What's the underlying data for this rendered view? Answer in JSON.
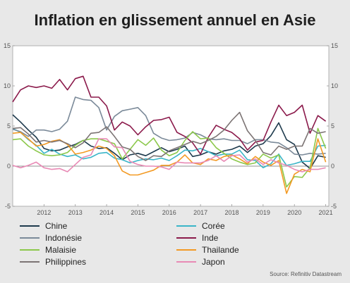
{
  "chart_data": {
    "type": "line",
    "title": "Inflation en glissement annuel en Asie",
    "source": "Source: Refinitiv Datastream",
    "ylim": [
      -5,
      15
    ],
    "yticks": [
      "-5",
      "0",
      "5",
      "10",
      "15"
    ],
    "xlim": [
      2011.5,
      2021.6
    ],
    "xticks": [
      "2012",
      "2013",
      "2014",
      "2015",
      "2016",
      "2017",
      "2018",
      "2019",
      "2020",
      "2021"
    ],
    "grid": false,
    "legend_position": "bottom",
    "series": [
      {
        "name": "Chine",
        "color": "#1e3a4d",
        "x": [
          2011.5,
          2011.75,
          2012,
          2012.25,
          2012.5,
          2012.75,
          2013,
          2013.25,
          2013.5,
          2013.75,
          2014,
          2014.25,
          2014.5,
          2014.75,
          2015,
          2015.25,
          2015.5,
          2015.75,
          2016,
          2016.25,
          2016.5,
          2016.75,
          2017,
          2017.25,
          2017.5,
          2017.75,
          2018,
          2018.25,
          2018.5,
          2018.75,
          2019,
          2019.25,
          2019.5,
          2019.75,
          2020,
          2020.25,
          2020.5,
          2020.75,
          2021,
          2021.25,
          2021.5
        ],
        "y": [
          6.4,
          5.5,
          4.5,
          3.6,
          2.2,
          1.9,
          2.0,
          2.4,
          2.7,
          3.2,
          2.5,
          2.2,
          2.3,
          1.6,
          0.8,
          1.4,
          1.6,
          1.3,
          1.8,
          2.3,
          1.8,
          2.1,
          2.5,
          1.2,
          1.4,
          1.8,
          1.5,
          1.9,
          2.1,
          2.5,
          1.7,
          2.5,
          2.8,
          3.8,
          5.4,
          3.3,
          2.7,
          0.5,
          -0.3,
          1.3,
          1.1
        ]
      },
      {
        "name": "Corée",
        "color": "#3ab5c8",
        "x": [
          2011.5,
          2011.75,
          2012,
          2012.25,
          2012.5,
          2012.75,
          2013,
          2013.25,
          2013.5,
          2013.75,
          2014,
          2014.25,
          2014.5,
          2014.75,
          2015,
          2015.25,
          2015.5,
          2015.75,
          2016,
          2016.25,
          2016.5,
          2016.75,
          2017,
          2017.25,
          2017.5,
          2017.75,
          2018,
          2018.25,
          2018.5,
          2018.75,
          2019,
          2019.25,
          2019.5,
          2019.75,
          2020,
          2020.25,
          2020.5,
          2020.75,
          2021,
          2021.25,
          2021.5
        ],
        "y": [
          4.7,
          4.2,
          3.3,
          2.6,
          1.6,
          2.1,
          1.5,
          1.2,
          1.4,
          0.9,
          1.1,
          1.6,
          1.7,
          1.0,
          0.8,
          0.4,
          0.7,
          0.9,
          0.8,
          1.0,
          0.7,
          1.3,
          2.0,
          1.9,
          2.2,
          1.8,
          1.3,
          1.5,
          1.5,
          2.0,
          0.8,
          0.7,
          -0.2,
          0.3,
          1.5,
          0.1,
          0.3,
          0.6,
          0.6,
          2.5,
          2.6
        ]
      },
      {
        "name": "Indonésie",
        "color": "#7b8a99",
        "x": [
          2011.5,
          2011.75,
          2012,
          2012.25,
          2012.5,
          2012.75,
          2013,
          2013.25,
          2013.5,
          2013.75,
          2014,
          2014.25,
          2014.5,
          2014.75,
          2015,
          2015.25,
          2015.5,
          2015.75,
          2016,
          2016.25,
          2016.5,
          2016.75,
          2017,
          2017.25,
          2017.5,
          2017.75,
          2018,
          2018.25,
          2018.5,
          2018.75,
          2019,
          2019.25,
          2019.5,
          2019.75,
          2020,
          2020.25,
          2020.5,
          2020.75,
          2021,
          2021.25,
          2021.5
        ],
        "y": [
          4.6,
          4.3,
          3.7,
          4.5,
          4.5,
          4.3,
          4.6,
          5.6,
          8.6,
          8.3,
          8.2,
          7.3,
          4.5,
          6.2,
          6.9,
          7.1,
          7.3,
          6.3,
          4.1,
          3.5,
          3.2,
          3.3,
          3.5,
          4.2,
          3.9,
          3.4,
          3.3,
          3.4,
          3.2,
          3.2,
          2.8,
          3.3,
          3.3,
          3.0,
          2.9,
          2.3,
          1.5,
          1.4,
          1.6,
          1.5,
          1.6
        ]
      },
      {
        "name": "Inde",
        "color": "#8b1a4b",
        "x": [
          2011.5,
          2011.75,
          2012,
          2012.25,
          2012.5,
          2012.75,
          2013,
          2013.25,
          2013.5,
          2013.75,
          2014,
          2014.25,
          2014.5,
          2014.75,
          2015,
          2015.25,
          2015.5,
          2015.75,
          2016,
          2016.25,
          2016.5,
          2016.75,
          2017,
          2017.25,
          2017.5,
          2017.75,
          2018,
          2018.25,
          2018.5,
          2018.75,
          2019,
          2019.25,
          2019.5,
          2019.75,
          2020,
          2020.25,
          2020.5,
          2020.75,
          2021,
          2021.25,
          2021.5
        ],
        "y": [
          8.0,
          9.5,
          10.0,
          9.8,
          10.0,
          9.7,
          10.8,
          9.5,
          10.9,
          11.2,
          8.6,
          8.6,
          7.5,
          4.5,
          5.5,
          5.0,
          3.9,
          4.9,
          5.7,
          5.8,
          6.1,
          4.2,
          3.7,
          2.9,
          1.5,
          3.6,
          5.1,
          4.6,
          4.2,
          3.4,
          2.0,
          3.0,
          3.2,
          5.5,
          7.6,
          6.3,
          6.7,
          7.6,
          4.1,
          6.3,
          5.6
        ]
      },
      {
        "name": "Malaisie",
        "color": "#8cc84b",
        "x": [
          2011.5,
          2011.75,
          2012,
          2012.25,
          2012.5,
          2012.75,
          2013,
          2013.25,
          2013.5,
          2013.75,
          2014,
          2014.25,
          2014.5,
          2014.75,
          2015,
          2015.25,
          2015.5,
          2015.75,
          2016,
          2016.25,
          2016.5,
          2016.75,
          2017,
          2017.25,
          2017.5,
          2017.75,
          2018,
          2018.25,
          2018.5,
          2018.75,
          2019,
          2019.25,
          2019.5,
          2019.75,
          2020,
          2020.25,
          2020.5,
          2020.75,
          2021,
          2021.25,
          2021.5
        ],
        "y": [
          3.3,
          3.4,
          2.5,
          1.9,
          1.4,
          1.3,
          1.4,
          1.7,
          2.6,
          3.2,
          3.4,
          3.4,
          3.1,
          2.8,
          0.9,
          2.1,
          3.3,
          2.6,
          3.5,
          2.0,
          1.3,
          1.7,
          3.2,
          4.3,
          3.4,
          3.5,
          2.3,
          1.6,
          0.9,
          0.5,
          0.2,
          0.4,
          1.5,
          1.0,
          1.4,
          -2.6,
          -1.3,
          -1.4,
          -0.2,
          4.7,
          2.2
        ]
      },
      {
        "name": "Thailande",
        "color": "#f39a24",
        "x": [
          2011.5,
          2011.75,
          2012,
          2012.25,
          2012.5,
          2012.75,
          2013,
          2013.25,
          2013.5,
          2013.75,
          2014,
          2014.25,
          2014.5,
          2014.75,
          2015,
          2015.25,
          2015.5,
          2015.75,
          2016,
          2016.25,
          2016.5,
          2016.75,
          2017,
          2017.25,
          2017.5,
          2017.75,
          2018,
          2018.25,
          2018.5,
          2018.75,
          2019,
          2019.25,
          2019.5,
          2019.75,
          2020,
          2020.25,
          2020.5,
          2020.75,
          2021,
          2021.25,
          2021.5
        ],
        "y": [
          4.1,
          4.2,
          3.4,
          2.5,
          2.7,
          3.1,
          3.3,
          2.7,
          1.5,
          1.7,
          2.0,
          2.5,
          2.2,
          1.3,
          -0.6,
          -1.1,
          -1.1,
          -0.8,
          -0.5,
          0.1,
          0.1,
          0.5,
          1.4,
          0.4,
          0.2,
          0.9,
          0.7,
          1.2,
          1.4,
          0.9,
          0.3,
          1.2,
          0.5,
          0.1,
          0.7,
          -3.4,
          -1.0,
          -0.4,
          -0.7,
          3.4,
          0.5
        ]
      },
      {
        "name": "Philippines",
        "color": "#7c7474",
        "x": [
          2011.5,
          2011.75,
          2012,
          2012.25,
          2012.5,
          2012.75,
          2013,
          2013.25,
          2013.5,
          2013.75,
          2014,
          2014.25,
          2014.5,
          2014.75,
          2015,
          2015.25,
          2015.5,
          2015.75,
          2016,
          2016.25,
          2016.5,
          2016.75,
          2017,
          2017.25,
          2017.5,
          2017.75,
          2018,
          2018.25,
          2018.5,
          2018.75,
          2019,
          2019.25,
          2019.5,
          2019.75,
          2020,
          2020.25,
          2020.5,
          2020.75,
          2021,
          2021.25,
          2021.5
        ],
        "y": [
          4.7,
          4.8,
          4.0,
          3.0,
          3.2,
          3.0,
          3.2,
          2.8,
          2.3,
          2.9,
          4.1,
          4.2,
          4.9,
          3.7,
          2.4,
          2.1,
          1.2,
          0.7,
          1.3,
          1.2,
          1.9,
          2.3,
          2.7,
          3.1,
          2.8,
          3.2,
          3.7,
          4.5,
          5.7,
          6.7,
          4.4,
          3.2,
          1.7,
          1.4,
          2.5,
          2.1,
          2.5,
          2.5,
          4.7,
          4.1,
          4.3
        ]
      },
      {
        "name": "Japon",
        "color": "#e88ab5",
        "x": [
          2011.5,
          2011.75,
          2012,
          2012.25,
          2012.5,
          2012.75,
          2013,
          2013.25,
          2013.5,
          2013.75,
          2014,
          2014.25,
          2014.5,
          2014.75,
          2015,
          2015.25,
          2015.5,
          2015.75,
          2016,
          2016.25,
          2016.5,
          2016.75,
          2017,
          2017.25,
          2017.5,
          2017.75,
          2018,
          2018.25,
          2018.5,
          2018.75,
          2019,
          2019.25,
          2019.5,
          2019.75,
          2020,
          2020.25,
          2020.5,
          2020.75,
          2021,
          2021.25,
          2021.5
        ],
        "y": [
          0.1,
          -0.2,
          0.1,
          0.5,
          -0.2,
          -0.4,
          -0.3,
          -0.7,
          0.2,
          1.1,
          1.4,
          3.4,
          3.4,
          2.4,
          2.3,
          0.6,
          0.2,
          0.0,
          0.0,
          -0.1,
          -0.4,
          0.5,
          0.4,
          0.4,
          0.4,
          0.7,
          1.3,
          0.6,
          1.3,
          1.4,
          0.5,
          0.9,
          0.2,
          0.8,
          0.4,
          0.1,
          -0.4,
          -0.7,
          -0.4,
          -0.4,
          -0.2
        ]
      }
    ]
  }
}
